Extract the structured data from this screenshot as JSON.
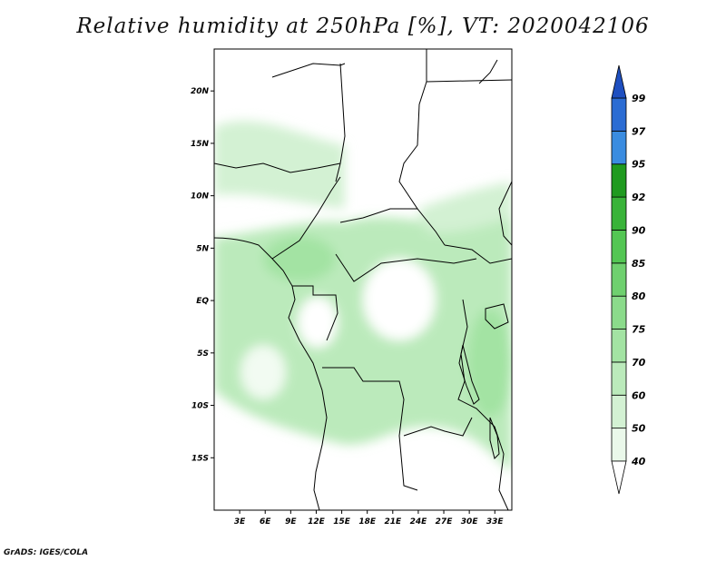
{
  "title": "Relative humidity at 250hPa [%], VT: 2020042106",
  "credit": "GrADS: IGES/COLA",
  "map": {
    "lon_range": [
      0,
      35
    ],
    "lat_range": [
      -20,
      24
    ],
    "lat_labels": [
      "20N",
      "15N",
      "10N",
      "5N",
      "EQ",
      "5S",
      "10S",
      "15S"
    ],
    "lat_values": [
      20,
      15,
      10,
      5,
      0,
      -5,
      -10,
      -15
    ],
    "lon_labels": [
      "3E",
      "6E",
      "9E",
      "12E",
      "15E",
      "18E",
      "21E",
      "24E",
      "27E",
      "30E",
      "33E"
    ],
    "lon_values": [
      3,
      6,
      9,
      12,
      15,
      18,
      21,
      24,
      27,
      30,
      33
    ]
  },
  "colorbar": {
    "levels": [
      "40",
      "50",
      "60",
      "70",
      "75",
      "80",
      "85",
      "90",
      "92",
      "95",
      "97",
      "99"
    ],
    "colors": [
      "#eaf8ea",
      "#d3f1d3",
      "#bbeabb",
      "#a3e3a3",
      "#8bdb8b",
      "#6fd06f",
      "#53c653",
      "#39b339",
      "#1f9a1f",
      "#3a8ce0",
      "#2b6cd3",
      "#1e4fc0"
    ],
    "over_color": "#1e4fc0"
  }
}
